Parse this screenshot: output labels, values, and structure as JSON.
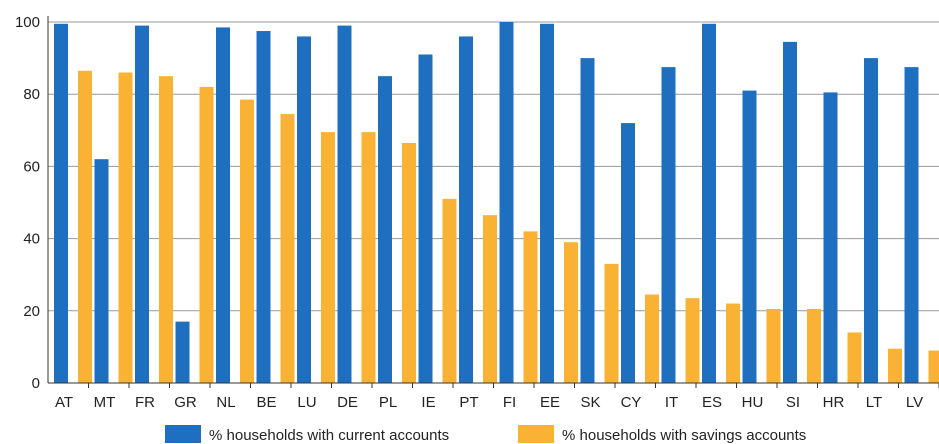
{
  "chart_data": {
    "type": "bar",
    "title": "",
    "xlabel": "",
    "ylabel": "",
    "ylim": [
      0,
      100
    ],
    "yticks": [
      0,
      20,
      40,
      60,
      80,
      100
    ],
    "grid": true,
    "legend_position": "bottom",
    "categories": [
      "AT",
      "MT",
      "FR",
      "GR",
      "NL",
      "BE",
      "LU",
      "DE",
      "PL",
      "IE",
      "PT",
      "FI",
      "EE",
      "SK",
      "CY",
      "IT",
      "ES",
      "HU",
      "SI",
      "HR",
      "LT",
      "LV"
    ],
    "series": [
      {
        "name": "% households with current accounts",
        "color": "#1f6fc1",
        "values": [
          99.5,
          62,
          99,
          17,
          98.5,
          97.5,
          96,
          99,
          85,
          91,
          96,
          100,
          99.5,
          90,
          72,
          87.5,
          99.5,
          81,
          94.5,
          80.5,
          90,
          87.5
        ]
      },
      {
        "name": "% households with savings accounts",
        "color": "#f9b233",
        "values": [
          86.5,
          86,
          85,
          82,
          78.5,
          74.5,
          69.5,
          69.5,
          66.5,
          51,
          46.5,
          42,
          39,
          33,
          24.5,
          23.5,
          22,
          20.5,
          20.5,
          14,
          9.5,
          9
        ]
      }
    ]
  }
}
